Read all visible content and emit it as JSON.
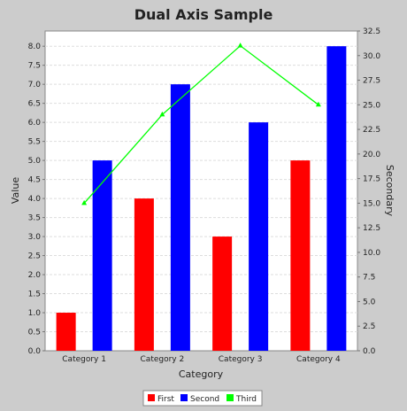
{
  "chart_data": {
    "type": "bar",
    "title": "Dual Axis Sample",
    "xlabel": "Category",
    "ylabel": "Value",
    "y2label": "Secondary",
    "categories": [
      "Category 1",
      "Category 2",
      "Category 3",
      "Category 4"
    ],
    "ylim": [
      0,
      8.4
    ],
    "y2lim": [
      0,
      32.5
    ],
    "yticks": [
      "0.0",
      "0.5",
      "1.0",
      "1.5",
      "2.0",
      "2.5",
      "3.0",
      "3.5",
      "4.0",
      "4.5",
      "5.0",
      "5.5",
      "6.0",
      "6.5",
      "7.0",
      "7.5",
      "8.0"
    ],
    "y2ticks": [
      "0.0",
      "2.5",
      "5.0",
      "7.5",
      "10.0",
      "12.5",
      "15.0",
      "17.5",
      "20.0",
      "22.5",
      "25.0",
      "27.5",
      "30.0",
      "32.5"
    ],
    "grid": true,
    "legend_position": "bottom",
    "series": [
      {
        "name": "First",
        "type": "bar",
        "axis": "left",
        "color": "#ff0000",
        "values": [
          1.0,
          4.0,
          3.0,
          5.0
        ]
      },
      {
        "name": "Second",
        "type": "bar",
        "axis": "left",
        "color": "#0000ff",
        "values": [
          5.0,
          7.0,
          6.0,
          8.0
        ]
      },
      {
        "name": "Third",
        "type": "line",
        "axis": "right",
        "color": "#00ff00",
        "marker": "triangle",
        "values": [
          15.0,
          24.0,
          31.0,
          25.0
        ]
      }
    ]
  }
}
